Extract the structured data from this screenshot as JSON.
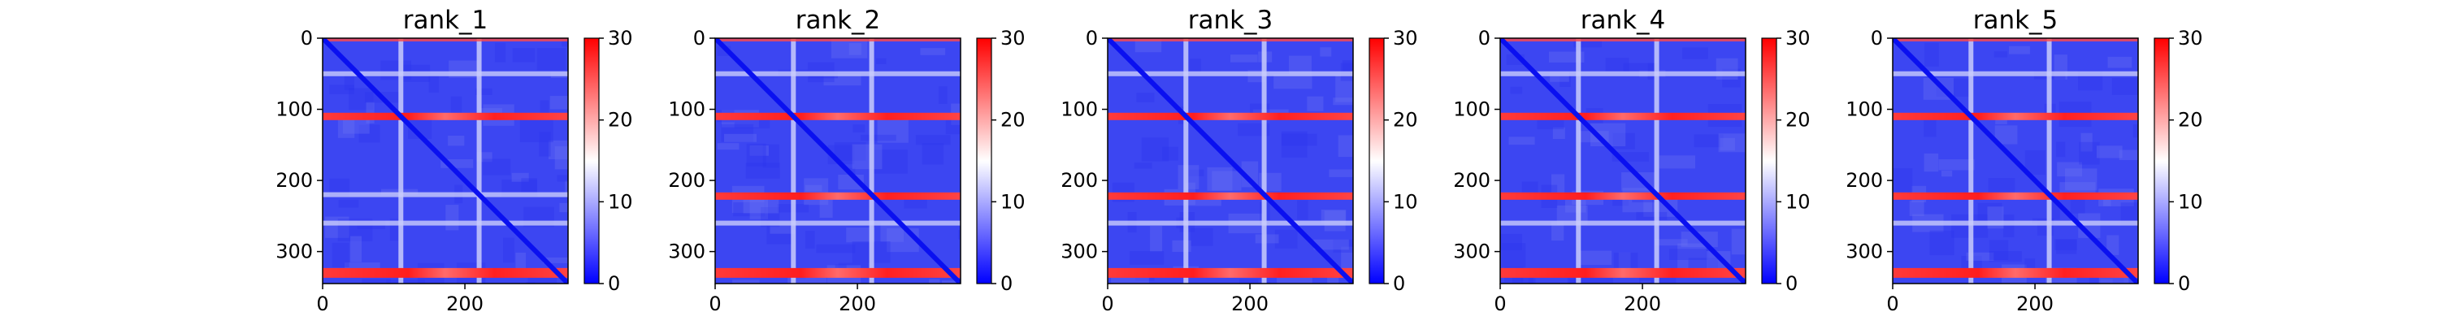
{
  "chart_data": [
    {
      "type": "heatmap",
      "title": "rank_1",
      "xlabel": "",
      "ylabel": "",
      "xlim": [
        0,
        345
      ],
      "ylim": [
        345,
        0
      ],
      "x_ticks": [
        0,
        200
      ],
      "y_ticks": [
        0,
        100,
        200,
        300
      ],
      "colorbar": {
        "min": 0,
        "max": 30,
        "ticks": [
          0,
          10,
          20,
          30
        ],
        "colors": [
          "#0000ff",
          "#ffffff",
          "#ff0000"
        ]
      },
      "high_error_rows": [
        110,
        330
      ],
      "faint_rows": [
        50,
        220,
        260
      ],
      "faint_cols": [
        110,
        220
      ]
    },
    {
      "type": "heatmap",
      "title": "rank_2",
      "xlabel": "",
      "ylabel": "",
      "xlim": [
        0,
        345
      ],
      "ylim": [
        345,
        0
      ],
      "x_ticks": [
        0,
        200
      ],
      "y_ticks": [
        0,
        100,
        200,
        300
      ],
      "colorbar": {
        "min": 0,
        "max": 30,
        "ticks": [
          0,
          10,
          20,
          30
        ],
        "colors": [
          "#0000ff",
          "#ffffff",
          "#ff0000"
        ]
      },
      "high_error_rows": [
        110,
        222,
        330
      ],
      "faint_rows": [
        50,
        260
      ],
      "faint_cols": [
        110,
        220
      ]
    },
    {
      "type": "heatmap",
      "title": "rank_3",
      "xlabel": "",
      "ylabel": "",
      "xlim": [
        0,
        345
      ],
      "ylim": [
        345,
        0
      ],
      "x_ticks": [
        0,
        200
      ],
      "y_ticks": [
        0,
        100,
        200,
        300
      ],
      "colorbar": {
        "min": 0,
        "max": 30,
        "ticks": [
          0,
          10,
          20,
          30
        ],
        "colors": [
          "#0000ff",
          "#ffffff",
          "#ff0000"
        ]
      },
      "high_error_rows": [
        110,
        222,
        330
      ],
      "faint_rows": [
        50,
        260
      ],
      "faint_cols": [
        110,
        220
      ]
    },
    {
      "type": "heatmap",
      "title": "rank_4",
      "xlabel": "",
      "ylabel": "",
      "xlim": [
        0,
        345
      ],
      "ylim": [
        345,
        0
      ],
      "x_ticks": [
        0,
        200
      ],
      "y_ticks": [
        0,
        100,
        200,
        300
      ],
      "colorbar": {
        "min": 0,
        "max": 30,
        "ticks": [
          0,
          10,
          20,
          30
        ],
        "colors": [
          "#0000ff",
          "#ffffff",
          "#ff0000"
        ]
      },
      "high_error_rows": [
        110,
        222,
        330
      ],
      "faint_rows": [
        50,
        260
      ],
      "faint_cols": [
        110,
        220
      ]
    },
    {
      "type": "heatmap",
      "title": "rank_5",
      "xlabel": "",
      "ylabel": "",
      "xlim": [
        0,
        345
      ],
      "ylim": [
        345,
        0
      ],
      "x_ticks": [
        0,
        200
      ],
      "y_ticks": [
        0,
        100,
        200,
        300
      ],
      "colorbar": {
        "min": 0,
        "max": 30,
        "ticks": [
          0,
          10,
          20,
          30
        ],
        "colors": [
          "#0000ff",
          "#ffffff",
          "#ff0000"
        ]
      },
      "high_error_rows": [
        110,
        222,
        330
      ],
      "faint_rows": [
        50,
        260
      ],
      "faint_cols": [
        110,
        220
      ]
    }
  ]
}
